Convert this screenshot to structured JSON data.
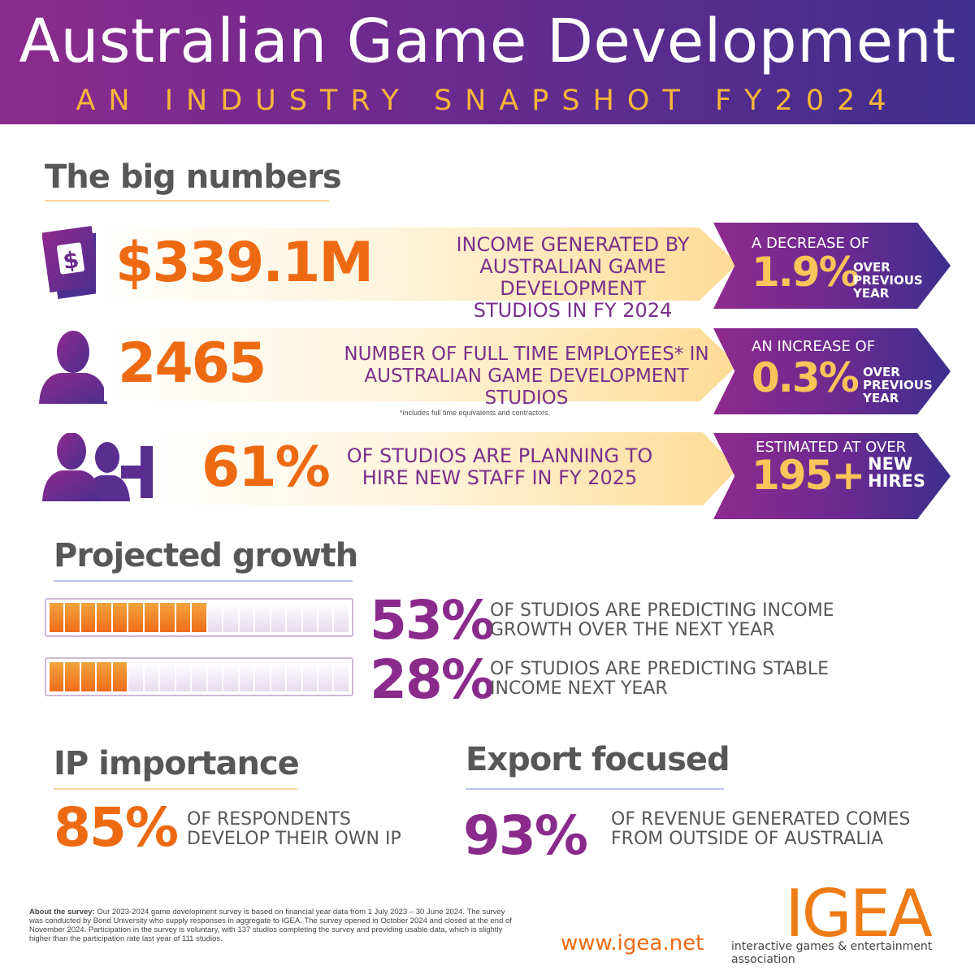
{
  "header": {
    "title": "Australian Game Development",
    "subtitle": "AN INDUSTRY SNAPSHOT  FY2024"
  },
  "big_numbers": {
    "title": "The big numbers",
    "rows": [
      {
        "value": "$339.1M",
        "line1": "INCOME GENERATED BY",
        "line2": "AUSTRALIAN GAME DEVELOPMENT",
        "line3": "STUDIOS IN FY 2024",
        "arrow_top": "A DECREASE OF",
        "arrow_pct": "1.9%",
        "arrow_side": "OVER PREVIOUS YEAR",
        "icon": "money-icon"
      },
      {
        "value": "2465",
        "line1": "NUMBER OF FULL TIME EMPLOYEES* IN",
        "line2": "AUSTRALIAN GAME DEVELOPMENT STUDIOS",
        "arrow_top": "AN INCREASE OF",
        "arrow_pct": "0.3%",
        "arrow_side": "OVER PREVIOUS YEAR",
        "footnote": "*includes full time equivalents and contractors.",
        "icon": "person-icon"
      },
      {
        "value": "61%",
        "line1": "OF STUDIOS ARE PLANNING TO",
        "line2": "HIRE NEW STAFF IN FY 2025",
        "arrow_top": "ESTIMATED AT OVER",
        "arrow_pct": "195+",
        "arrow_side": "NEW HIRES",
        "icon": "add-people-icon"
      }
    ]
  },
  "growth": {
    "title": "Projected growth",
    "rows": [
      {
        "pct": "53%",
        "fraction": 0.53,
        "line1": "OF STUDIOS ARE PREDICTING INCOME",
        "line2": "GROWTH OVER THE NEXT YEAR"
      },
      {
        "pct": "28%",
        "fraction": 0.28,
        "line1": "OF STUDIOS ARE PREDICTING STABLE",
        "line2": "INCOME NEXT YEAR"
      }
    ]
  },
  "ip": {
    "title": "IP importance",
    "pct": "85%",
    "line1": "OF RESPONDENTS",
    "line2": "DEVELOP THEIR OWN IP"
  },
  "export": {
    "title": "Export focused",
    "pct": "93%",
    "line1": "OF REVENUE GENERATED COMES",
    "line2": "FROM OUTSIDE OF AUSTRALIA"
  },
  "footer": {
    "survey_label": "About the survey:",
    "survey_text": "Our 2023-2024 game development survey is based on financial year data from 1 July 2023 – 30 June 2024. The survey was conducted by Bond University who supply responses in aggregate to IGEA. The survey opened in October 2024 and closed at the end of November 2024. Participation in the survey is voluntary, with 137 studios completing the survey and providing usable data, which is slightly higher than the participation rate last year of 111 studios.",
    "url": "www.igea.net",
    "logo": "IGEA",
    "logo_sub": "interactive games & entertainment association"
  },
  "colors": {
    "purple": "#8a2b8c",
    "orange": "#ee6a12",
    "gold": "#f9c55a",
    "grey": "#575757"
  }
}
